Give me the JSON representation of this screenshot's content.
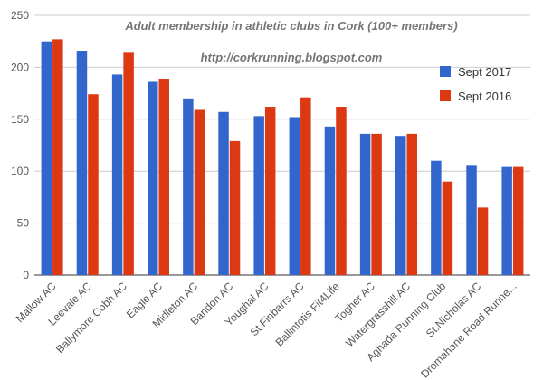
{
  "chart_data": {
    "type": "bar",
    "title": "Adult membership in athletic clubs in Cork (100+ members)",
    "subtitle": "http://corkrunning.blogspot.com",
    "xlabel": "",
    "ylabel": "",
    "ylim": [
      0,
      250
    ],
    "yticks": [
      0,
      50,
      100,
      150,
      200,
      250
    ],
    "grid": true,
    "legend_position": "right",
    "categories": [
      "Mallow AC",
      "Leevale AC",
      "Ballymore Cobh AC",
      "Eagle AC",
      "Midleton AC",
      "Bandon AC",
      "Youghal AC",
      "St.Finbarrs AC",
      "Ballintotis Fit4Life",
      "Togher AC",
      "Watergrasshill AC",
      "Aghada Running Club",
      "St.Nicholas AC",
      "Dromahane Road Runne..."
    ],
    "series": [
      {
        "name": "Sept 2017",
        "color": "#3366cc",
        "values": [
          225,
          216,
          193,
          186,
          170,
          157,
          153,
          152,
          143,
          136,
          134,
          110,
          106,
          104
        ]
      },
      {
        "name": "Sept 2016",
        "color": "#dc3912",
        "values": [
          227,
          174,
          214,
          189,
          159,
          129,
          162,
          171,
          162,
          136,
          136,
          90,
          65,
          104
        ]
      }
    ]
  }
}
